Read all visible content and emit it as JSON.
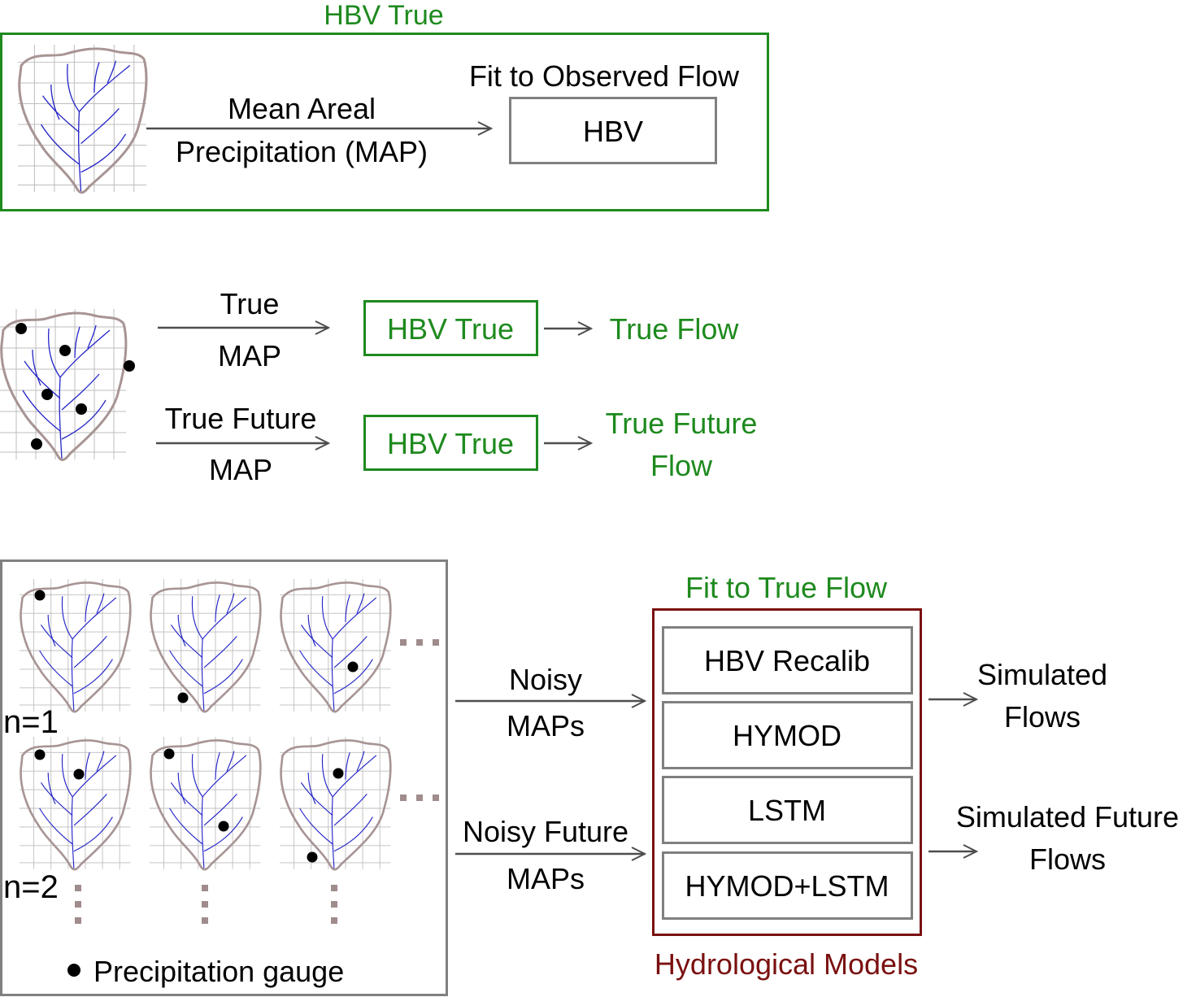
{
  "colors": {
    "green": "#1e8a1e",
    "darkred": "#7a1010",
    "box_gray": "#808080",
    "outline": "#a89494",
    "river": "#2424c8",
    "grid": "#bdbdbd",
    "arrow": "#4d4d4d",
    "ellipsis": "#a08c8c"
  },
  "panel_top": {
    "title": "HBV True",
    "arrow_label_line1": "Mean Areal",
    "arrow_label_line2": "Precipitation (MAP)",
    "fit_label": "Fit to Observed Flow",
    "model_label": "HBV"
  },
  "panel_middle": {
    "row1": {
      "label_top": "True",
      "label_bottom": "MAP",
      "model": "HBV True",
      "output": "True Flow"
    },
    "row2": {
      "label_top": "True Future",
      "label_bottom": "MAP",
      "model": "HBV True",
      "output_line1": "True Future",
      "output_line2": "Flow"
    }
  },
  "panel_bottom": {
    "n1_label": "n=1",
    "n2_label": "n=2",
    "legend_label": "Precipitation gauge",
    "arrow1_line1": "Noisy",
    "arrow1_line2": "MAPs",
    "arrow2_line1": "Noisy Future",
    "arrow2_line2": "MAPs",
    "fit_label": "Fit to True Flow",
    "models": [
      "HBV Recalib",
      "HYMOD",
      "LSTM",
      "HYMOD+LSTM"
    ],
    "models_caption": "Hydrological Models",
    "output1_line1": "Simulated",
    "output1_line2": "Flows",
    "output2_line1": "Simulated Future",
    "output2_line2": "Flows"
  }
}
